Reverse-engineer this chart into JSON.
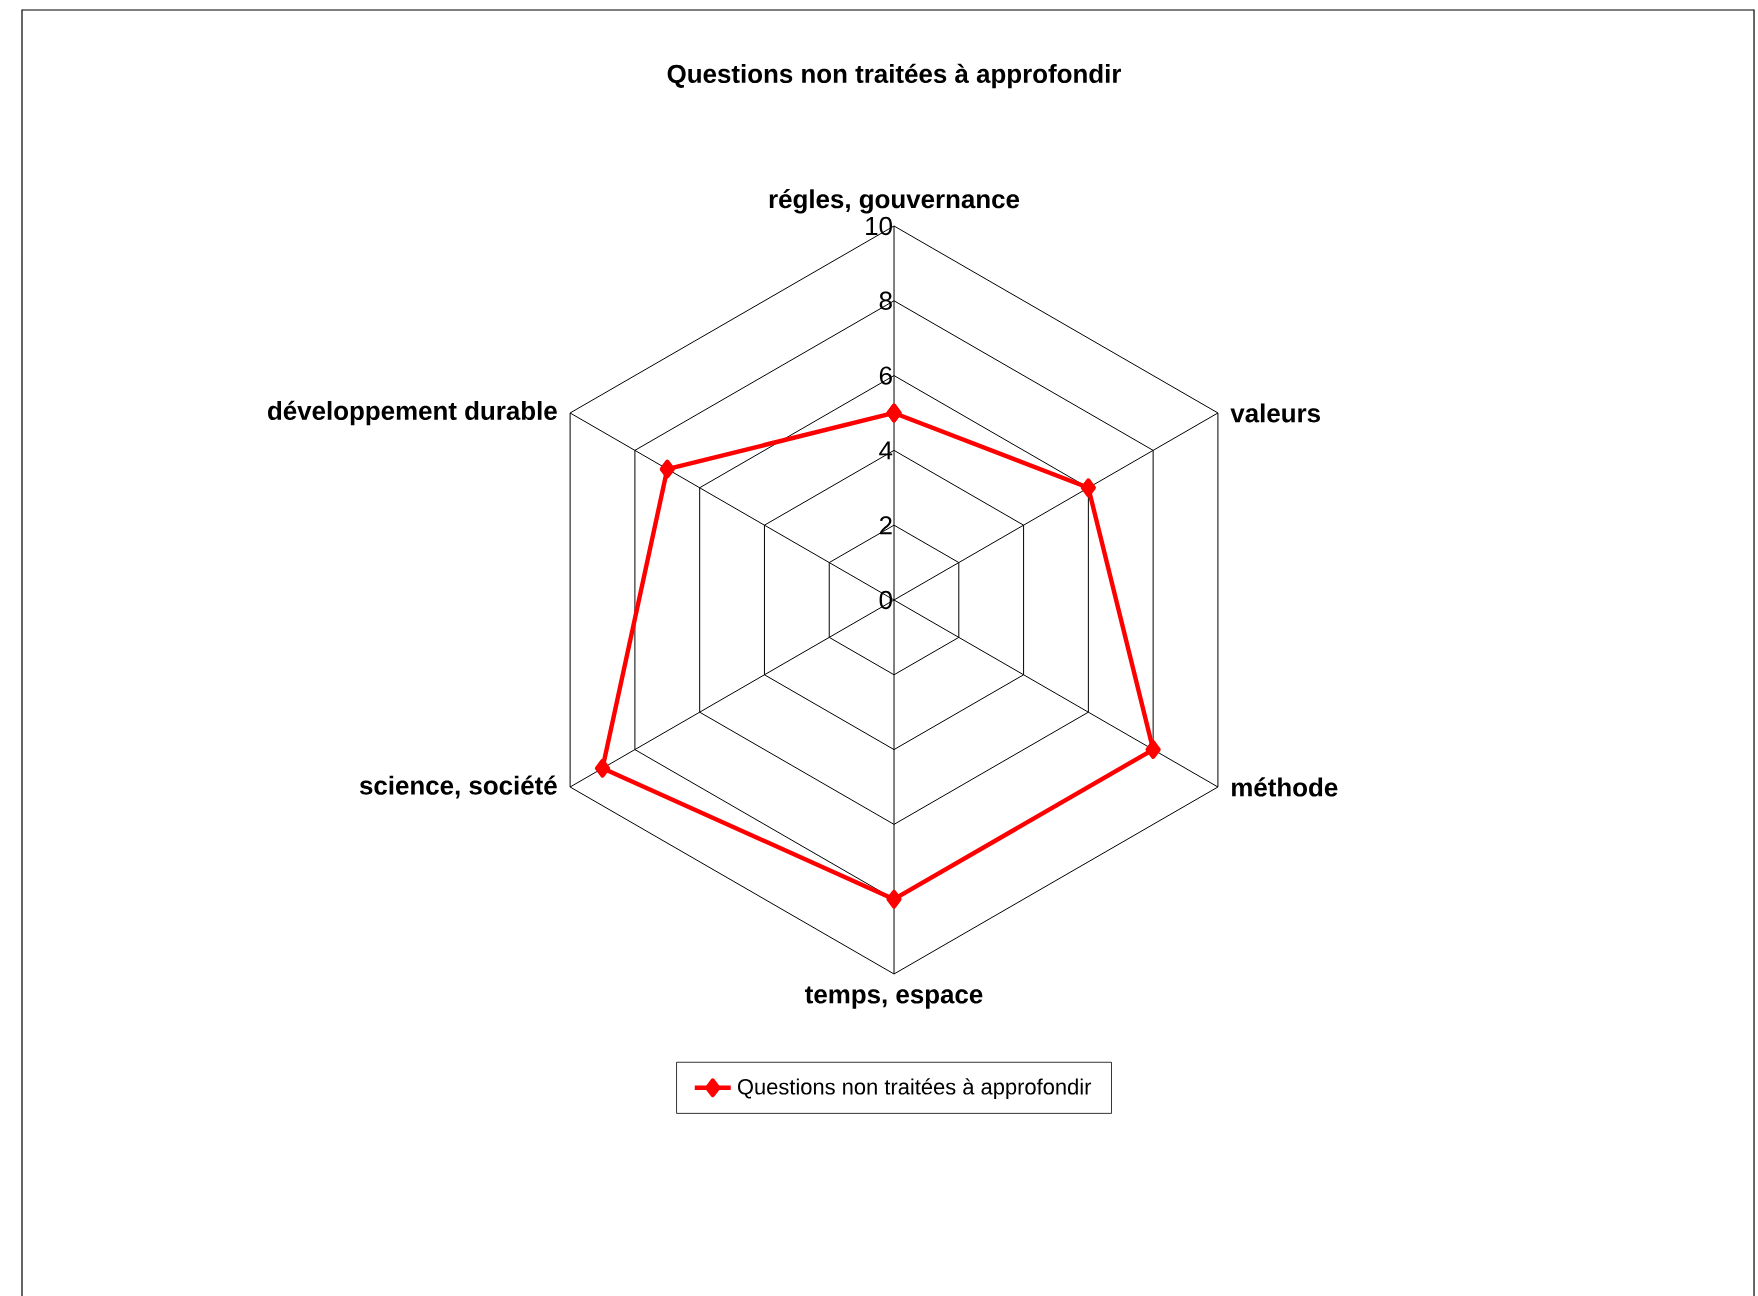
{
  "chart_data": {
    "type": "radar",
    "title": "Questions non traitées à approfondir",
    "categories": [
      "régles, gouvernance",
      "valeurs",
      "méthode",
      "temps, espace",
      "science, société",
      "développement durable"
    ],
    "series": [
      {
        "name": "Questions non traitées à approfondir",
        "color": "#ff0000",
        "values": [
          5,
          6,
          8,
          8,
          9,
          7
        ]
      }
    ],
    "ylim": [
      0,
      10
    ],
    "yticks": [
      0,
      2,
      4,
      6,
      8,
      10
    ],
    "grid": true,
    "legend": "bottom",
    "marker": "diamond",
    "line_style": "solid"
  }
}
